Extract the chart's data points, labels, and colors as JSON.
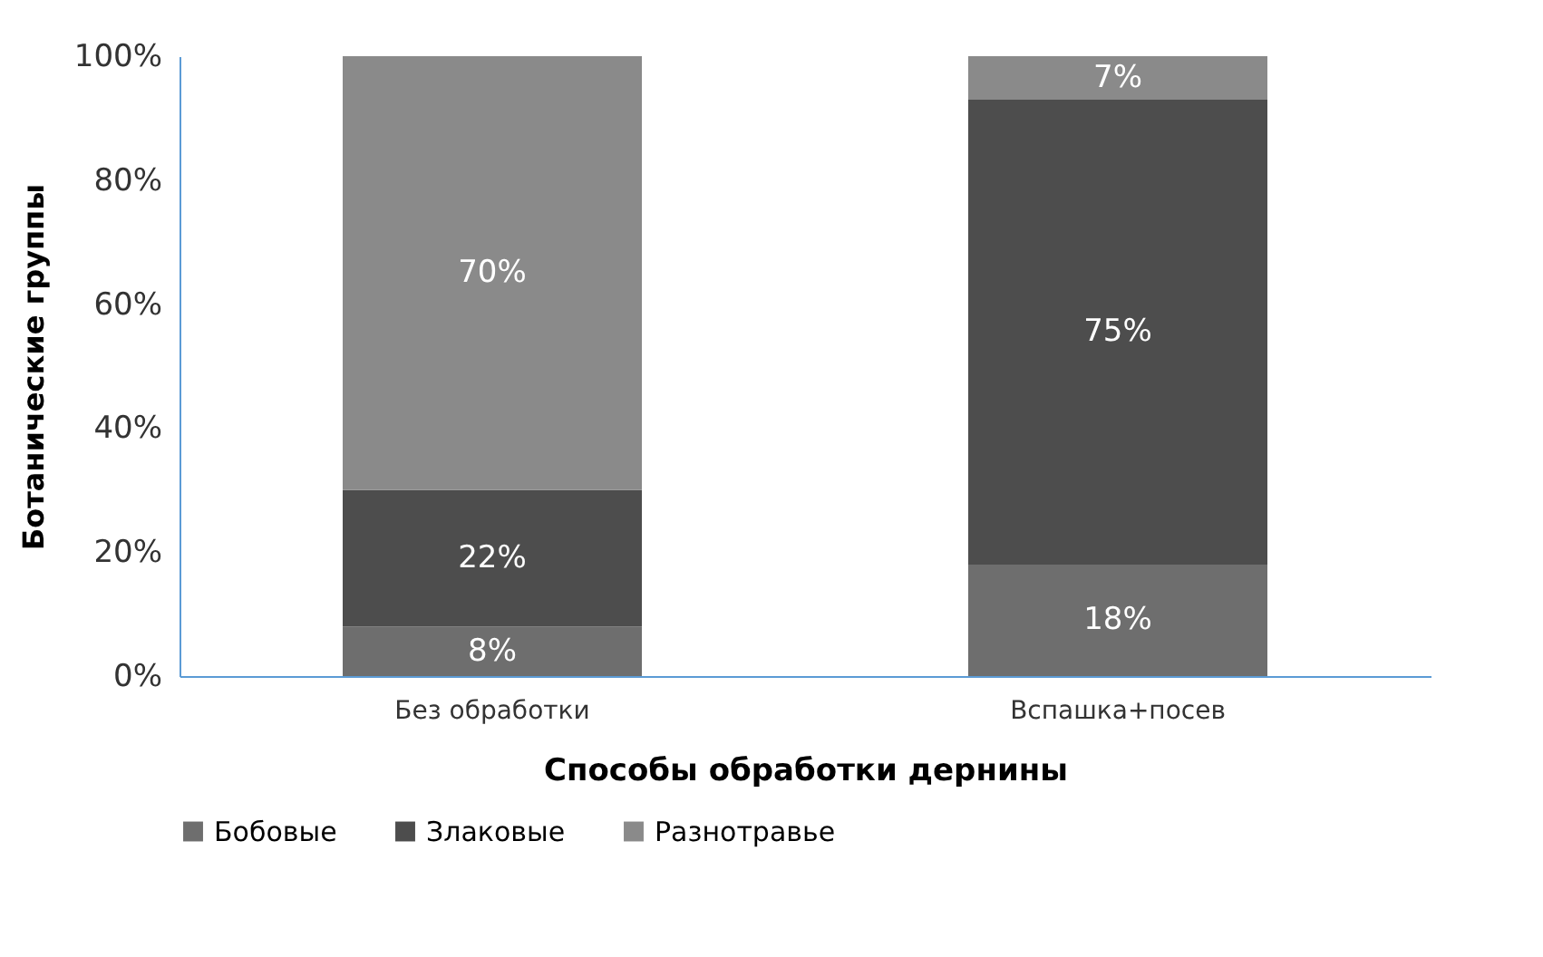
{
  "chart_data": {
    "type": "bar",
    "stacked": true,
    "xlabel": "Способы обработки дернины",
    "ylabel": "Ботанические группы",
    "categories": [
      "Без обработки",
      "Вспашка+посев"
    ],
    "series": [
      {
        "name": "Бобовые",
        "color": "#6e6e6e",
        "values": [
          8,
          18
        ],
        "value_labels": [
          "8%",
          "18%"
        ]
      },
      {
        "name": "Злаковые",
        "color": "#4d4d4d",
        "values": [
          22,
          75
        ],
        "value_labels": [
          "22%",
          "75%"
        ]
      },
      {
        "name": "Разнотравье",
        "color": "#8a8a8a",
        "values": [
          70,
          7
        ],
        "value_labels": [
          "70%",
          "7%"
        ]
      }
    ],
    "ylim": [
      0,
      100
    ],
    "yticks": [
      {
        "value": 0,
        "label": "0%"
      },
      {
        "value": 20,
        "label": "20%"
      },
      {
        "value": 40,
        "label": "40%"
      },
      {
        "value": 60,
        "label": "60%"
      },
      {
        "value": 80,
        "label": "80%"
      },
      {
        "value": 100,
        "label": "100%"
      }
    ],
    "grid": false,
    "legend": "bottom"
  }
}
